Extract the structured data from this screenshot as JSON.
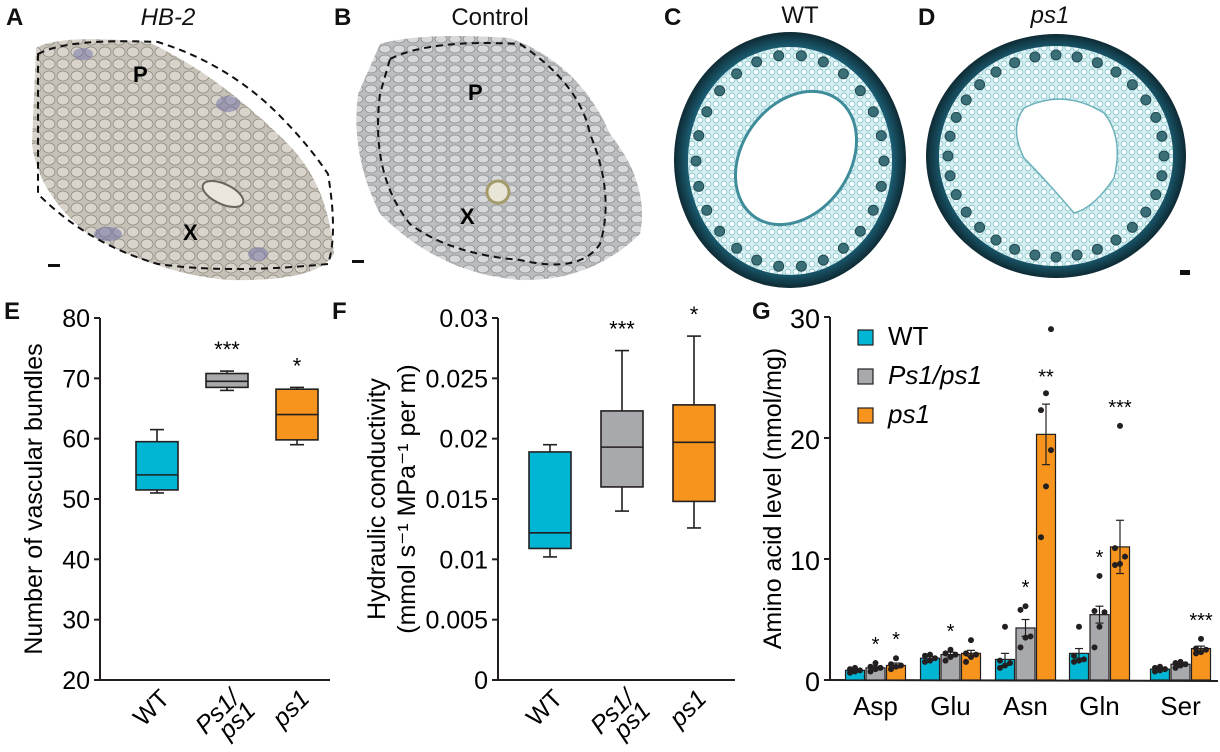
{
  "figure": {
    "panels_top": [
      {
        "letter": "A",
        "title": "HB-2",
        "title_italic": true,
        "labels": [
          "P",
          "X"
        ],
        "description": "in situ section, HB-2 probe, purple stain"
      },
      {
        "letter": "B",
        "title": "Control",
        "title_italic": false,
        "labels": [
          "P",
          "X"
        ],
        "description": "in situ section, control probe"
      },
      {
        "letter": "C",
        "title": "WT",
        "title_italic": false,
        "labels": [],
        "description": "stem cross-section, toluidine blue"
      },
      {
        "letter": "D",
        "title": "ps1",
        "title_italic": true,
        "labels": [],
        "description": "stem cross-section, toluidine blue"
      }
    ],
    "colors": {
      "WT": "#00b6d4",
      "Ps1/ps1": "#a7a9ac",
      "ps1": "#f7941d",
      "outline": "#231f20"
    }
  },
  "chart_data": [
    {
      "panel": "E",
      "type": "box",
      "title": "",
      "xlabel": "",
      "ylabel": "Number of vascular bundles",
      "ylim": [
        20,
        80
      ],
      "yticks": [
        20,
        30,
        40,
        50,
        60,
        70,
        80
      ],
      "categories": [
        "WT",
        "Ps1/\nps1",
        "ps1"
      ],
      "category_labels": [
        [
          "WT"
        ],
        [
          "Ps1/",
          "ps1"
        ],
        [
          "ps1"
        ]
      ],
      "series": [
        {
          "name": "WT",
          "min": 51,
          "q1": 51.5,
          "median": 54,
          "q3": 59.5,
          "max": 61.5,
          "significance": ""
        },
        {
          "name": "Ps1/ps1",
          "min": 68,
          "q1": 68.5,
          "median": 69.5,
          "q3": 70.8,
          "max": 71.2,
          "significance": "***"
        },
        {
          "name": "ps1",
          "min": 59,
          "q1": 59.8,
          "median": 64,
          "q3": 68.2,
          "max": 68.5,
          "significance": "*"
        }
      ],
      "grid": false
    },
    {
      "panel": "F",
      "type": "box",
      "title": "",
      "xlabel": "",
      "ylabel_line1": "Hydraulic conductivity",
      "ylabel_line2": "(mmol s⁻¹ MPa⁻¹ per m)",
      "ylim": [
        0,
        0.03
      ],
      "yticks": [
        "0",
        "0.005",
        "0.01",
        "0.015",
        "0.02",
        "0.025",
        "0.03"
      ],
      "ytick_values": [
        0,
        0.005,
        0.01,
        0.015,
        0.02,
        0.025,
        0.03
      ],
      "categories": [
        "WT",
        "Ps1/ps1",
        "ps1"
      ],
      "category_labels": [
        [
          "WT"
        ],
        [
          "Ps1/",
          "ps1"
        ],
        [
          "ps1"
        ]
      ],
      "series": [
        {
          "name": "WT",
          "min": 0.0102,
          "q1": 0.0109,
          "median": 0.0122,
          "q3": 0.0189,
          "max": 0.0195,
          "significance": ""
        },
        {
          "name": "Ps1/ps1",
          "min": 0.014,
          "q1": 0.016,
          "median": 0.0193,
          "q3": 0.0223,
          "max": 0.0273,
          "significance": "***"
        },
        {
          "name": "ps1",
          "min": 0.0126,
          "q1": 0.0148,
          "median": 0.0197,
          "q3": 0.0228,
          "max": 0.0285,
          "significance": "*"
        }
      ],
      "grid": false
    },
    {
      "panel": "G",
      "type": "bar",
      "title": "",
      "xlabel": "",
      "ylabel": "Amino acid level (nmol/mg)",
      "ylim": [
        0,
        30
      ],
      "yticks": [
        0,
        10,
        20,
        30
      ],
      "categories": [
        "Asp",
        "Glu",
        "Asn",
        "Gln",
        "Ser"
      ],
      "legend": {
        "position": "top-left",
        "entries": [
          "WT",
          "Ps1/ps1",
          "ps1"
        ],
        "italic": [
          false,
          true,
          true
        ]
      },
      "series": [
        {
          "name": "WT",
          "values": [
            0.8,
            1.8,
            1.7,
            2.2,
            0.9
          ],
          "sem": [
            0.1,
            0.15,
            0.5,
            0.4,
            0.1
          ],
          "significance": [
            "",
            "",
            "",
            "",
            ""
          ],
          "points": [
            [
              0.6,
              0.7,
              0.8,
              0.9,
              1.0
            ],
            [
              1.5,
              1.6,
              1.8,
              2.0,
              2.1
            ],
            [
              1.0,
              1.2,
              1.4,
              1.6,
              4.4
            ],
            [
              1.5,
              1.6,
              1.7,
              2.0,
              4.4
            ],
            [
              0.7,
              0.8,
              0.9,
              1.0,
              1.1
            ]
          ]
        },
        {
          "name": "Ps1/ps1",
          "values": [
            1.0,
            2.1,
            4.3,
            5.4,
            1.3
          ],
          "sem": [
            0.15,
            0.2,
            0.7,
            0.7,
            0.15
          ],
          "significance": [
            "*",
            "*",
            "*",
            "*",
            ""
          ],
          "points": [
            [
              0.7,
              0.9,
              1.0,
              1.1,
              1.4
            ],
            [
              1.6,
              1.9,
              2.1,
              2.2,
              2.5
            ],
            [
              2.7,
              3.5,
              3.6,
              5.8,
              6.1
            ],
            [
              2.7,
              4.4,
              5.6,
              5.7,
              8.6
            ],
            [
              1.0,
              1.2,
              1.3,
              1.4,
              1.5
            ]
          ]
        },
        {
          "name": "ps1",
          "values": [
            1.2,
            2.2,
            20.3,
            11.0,
            2.6
          ],
          "sem": [
            0.2,
            0.25,
            2.5,
            2.2,
            0.2
          ],
          "significance": [
            "*",
            "",
            "**",
            "***",
            "***"
          ],
          "points": [
            [
              0.9,
              1.1,
              1.2,
              1.3,
              1.8
            ],
            [
              1.5,
              1.9,
              2.1,
              2.2,
              3.3
            ],
            [
              11.8,
              16.0,
              19.0,
              22.3,
              23.7,
              29.0
            ],
            [
              9.5,
              9.6,
              10.2,
              10.9,
              21.0
            ],
            [
              2.2,
              2.3,
              2.5,
              2.6,
              3.4
            ]
          ]
        }
      ],
      "grid": false
    }
  ]
}
